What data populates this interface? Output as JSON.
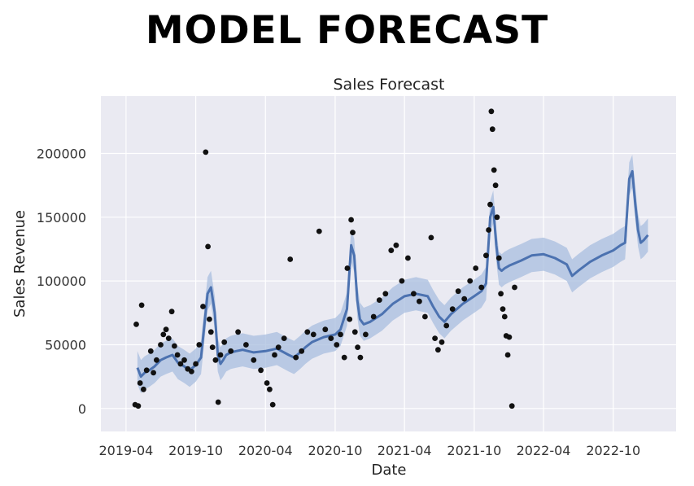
{
  "banner": {
    "text": "MODEL FORECAST"
  },
  "colors": {
    "plot_background": "#eaeaf2",
    "grid": "#ffffff",
    "forecast_line": "#4c72b0",
    "uncertainty_band": "#a8bedf",
    "observed_points": "#111111"
  },
  "chart_data": {
    "type": "line",
    "title": "Sales Forecast",
    "xlabel": "Date",
    "ylabel": "Sales Revenue",
    "x_ticks": [
      "2019-04",
      "2019-10",
      "2020-04",
      "2020-10",
      "2021-04",
      "2021-10",
      "2022-04",
      "2022-10"
    ],
    "y_ticks": [
      0,
      50000,
      100000,
      150000,
      200000
    ],
    "xlim": [
      "2019-01-25",
      "2023-03-15"
    ],
    "ylim": [
      -18000,
      245000
    ],
    "grid": true,
    "legend": "none",
    "series": [
      {
        "role": "forecast",
        "x": [
          "2019-05-01",
          "2019-05-10",
          "2019-05-20",
          "2019-06-01",
          "2019-06-15",
          "2019-07-01",
          "2019-07-15",
          "2019-08-01",
          "2019-08-15",
          "2019-09-01",
          "2019-09-15",
          "2019-10-01",
          "2019-10-15",
          "2019-11-01",
          "2019-11-10",
          "2019-11-20",
          "2019-11-28",
          "2019-12-05",
          "2019-12-12",
          "2019-12-20",
          "2020-01-01",
          "2020-01-15",
          "2020-02-01",
          "2020-03-01",
          "2020-04-01",
          "2020-05-01",
          "2020-06-01",
          "2020-06-15",
          "2020-07-01",
          "2020-07-15",
          "2020-08-01",
          "2020-09-01",
          "2020-10-01",
          "2020-10-15",
          "2020-11-01",
          "2020-11-12",
          "2020-11-20",
          "2020-11-28",
          "2020-12-05",
          "2020-12-15",
          "2021-01-01",
          "2021-02-01",
          "2021-03-01",
          "2021-04-01",
          "2021-05-01",
          "2021-06-01",
          "2021-06-15",
          "2021-07-01",
          "2021-07-15",
          "2021-08-01",
          "2021-09-01",
          "2021-10-01",
          "2021-10-20",
          "2021-11-01",
          "2021-11-12",
          "2021-11-20",
          "2021-11-28",
          "2021-12-05",
          "2021-12-12",
          "2021-12-20",
          "2022-01-01",
          "2022-02-01",
          "2022-03-01",
          "2022-04-01",
          "2022-05-01",
          "2022-06-01",
          "2022-06-15",
          "2022-07-01",
          "2022-08-01",
          "2022-09-01",
          "2022-10-01",
          "2022-10-20",
          "2022-11-01",
          "2022-11-12",
          "2022-11-20",
          "2022-11-28",
          "2022-12-05",
          "2022-12-12",
          "2022-12-20",
          "2022-12-31"
        ],
        "y": [
          32000,
          25000,
          28000,
          30000,
          33000,
          38000,
          40000,
          42000,
          36000,
          33000,
          30000,
          34000,
          40000,
          90000,
          95000,
          75000,
          42000,
          35000,
          38000,
          42000,
          44000,
          45000,
          46000,
          44000,
          45000,
          47000,
          42000,
          40000,
          44000,
          48000,
          52000,
          56000,
          58000,
          62000,
          78000,
          128000,
          120000,
          85000,
          70000,
          66000,
          68000,
          74000,
          82000,
          88000,
          90000,
          88000,
          80000,
          72000,
          68000,
          74000,
          82000,
          88000,
          92000,
          98000,
          150000,
          158000,
          128000,
          110000,
          108000,
          110000,
          112000,
          116000,
          120000,
          121000,
          118000,
          113000,
          104000,
          108000,
          115000,
          120000,
          124000,
          128000,
          130000,
          180000,
          186000,
          160000,
          140000,
          130000,
          132000,
          136000
        ],
        "band": 13000
      },
      {
        "role": "observed",
        "x": [
          "2019-04-25",
          "2019-04-28",
          "2019-05-03",
          "2019-05-08",
          "2019-05-12",
          "2019-05-17",
          "2019-05-25",
          "2019-06-05",
          "2019-06-12",
          "2019-06-20",
          "2019-07-01",
          "2019-07-08",
          "2019-07-15",
          "2019-07-22",
          "2019-07-30",
          "2019-08-06",
          "2019-08-14",
          "2019-08-22",
          "2019-09-01",
          "2019-09-10",
          "2019-09-20",
          "2019-10-01",
          "2019-10-10",
          "2019-10-20",
          "2019-10-27",
          "2019-11-02",
          "2019-11-06",
          "2019-11-10",
          "2019-11-14",
          "2019-11-22",
          "2019-11-29",
          "2019-12-05",
          "2019-12-15",
          "2020-01-01",
          "2020-01-20",
          "2020-02-10",
          "2020-03-01",
          "2020-03-20",
          "2020-04-05",
          "2020-04-12",
          "2020-04-20",
          "2020-04-25",
          "2020-05-05",
          "2020-05-20",
          "2020-06-05",
          "2020-06-20",
          "2020-07-05",
          "2020-07-20",
          "2020-08-05",
          "2020-08-20",
          "2020-09-05",
          "2020-09-20",
          "2020-10-05",
          "2020-10-15",
          "2020-10-25",
          "2020-11-02",
          "2020-11-08",
          "2020-11-12",
          "2020-11-16",
          "2020-11-22",
          "2020-11-29",
          "2020-12-06",
          "2020-12-20",
          "2021-01-10",
          "2021-01-25",
          "2021-02-10",
          "2021-02-25",
          "2021-03-10",
          "2021-03-25",
          "2021-04-10",
          "2021-04-25",
          "2021-05-10",
          "2021-05-25",
          "2021-06-10",
          "2021-06-20",
          "2021-06-28",
          "2021-07-08",
          "2021-07-20",
          "2021-08-05",
          "2021-08-20",
          "2021-09-05",
          "2021-09-20",
          "2021-10-05",
          "2021-10-20",
          "2021-11-01",
          "2021-11-08",
          "2021-11-12",
          "2021-11-15",
          "2021-11-18",
          "2021-11-22",
          "2021-11-26",
          "2021-11-30",
          "2021-12-05",
          "2021-12-10",
          "2021-12-15",
          "2021-12-20",
          "2021-12-24",
          "2021-12-28",
          "2022-01-01",
          "2022-01-08",
          "2022-01-15"
        ],
        "y": [
          3000,
          66000,
          2000,
          20000,
          81000,
          15000,
          30000,
          45000,
          28000,
          38000,
          50000,
          58000,
          62000,
          55000,
          76000,
          49000,
          42000,
          35000,
          38000,
          31000,
          29000,
          35000,
          50000,
          80000,
          201000,
          127000,
          70000,
          60000,
          48000,
          38000,
          5000,
          42000,
          52000,
          45000,
          60000,
          50000,
          38000,
          30000,
          20000,
          15000,
          3000,
          42000,
          48000,
          55000,
          117000,
          40000,
          45000,
          60000,
          58000,
          139000,
          62000,
          55000,
          50000,
          58000,
          40000,
          110000,
          70000,
          148000,
          138000,
          60000,
          48000,
          40000,
          58000,
          72000,
          85000,
          90000,
          124000,
          128000,
          100000,
          118000,
          90000,
          84000,
          72000,
          134000,
          55000,
          46000,
          52000,
          65000,
          78000,
          92000,
          86000,
          100000,
          110000,
          95000,
          120000,
          140000,
          160000,
          233000,
          219000,
          187000,
          175000,
          150000,
          118000,
          90000,
          78000,
          72000,
          57000,
          42000,
          56000,
          2000,
          95000
        ]
      }
    ]
  }
}
